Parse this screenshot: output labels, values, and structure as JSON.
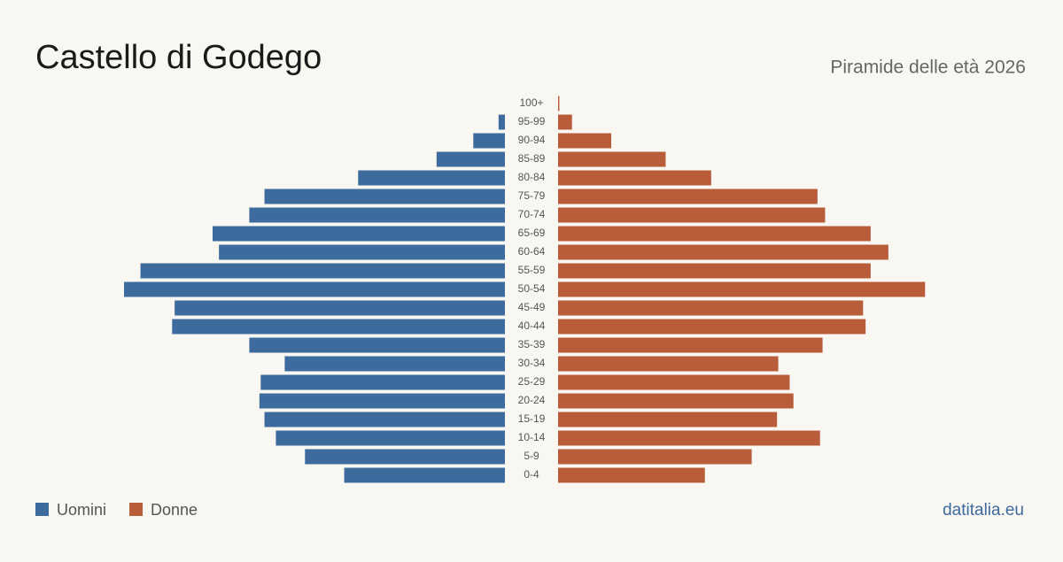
{
  "chart_data": {
    "type": "pyramid",
    "title": "Castello di Godego",
    "subtitle": "Piramide delle età 2026",
    "source": "datitalia.eu",
    "categories": [
      "100+",
      "95-99",
      "90-94",
      "85-89",
      "80-84",
      "75-79",
      "70-74",
      "65-69",
      "60-64",
      "55-59",
      "50-54",
      "45-49",
      "40-44",
      "35-39",
      "30-34",
      "25-29",
      "20-24",
      "15-19",
      "10-14",
      "5-9",
      "0-4"
    ],
    "series": [
      {
        "name": "Uomini",
        "color": "#3d6b9e",
        "values": [
          0,
          5,
          25,
          54,
          116,
          190,
          202,
          231,
          226,
          288,
          301,
          261,
          263,
          202,
          174,
          193,
          194,
          190,
          181,
          158,
          127
        ]
      },
      {
        "name": "Donne",
        "color": "#b95c3a",
        "values": [
          1,
          11,
          42,
          85,
          121,
          205,
          211,
          247,
          261,
          247,
          290,
          241,
          243,
          209,
          174,
          183,
          186,
          173,
          207,
          153,
          116
        ]
      }
    ],
    "legend": "bottom-left"
  }
}
